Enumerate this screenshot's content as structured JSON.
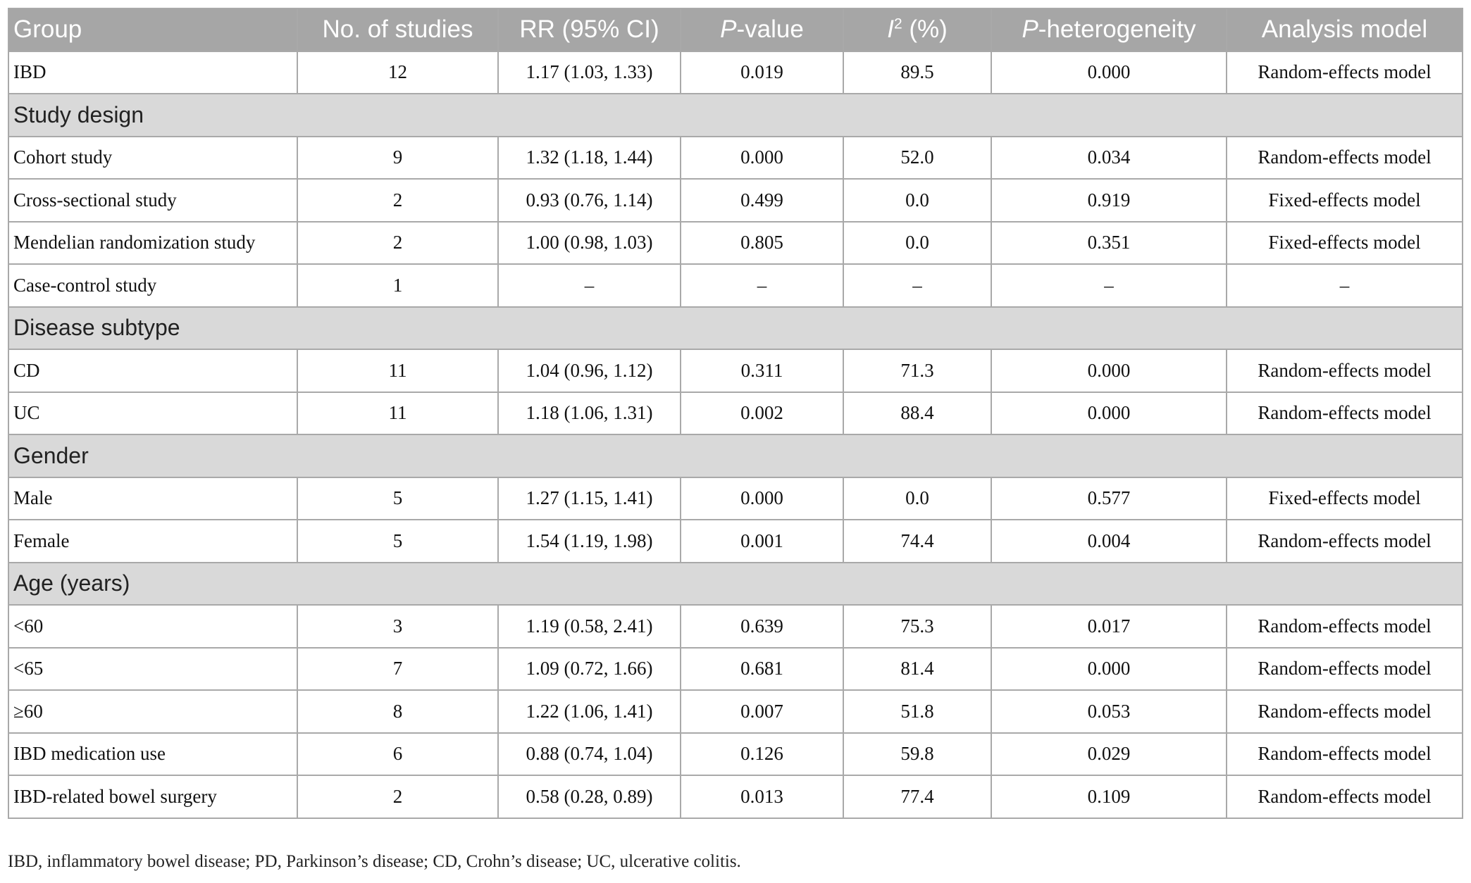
{
  "table": {
    "header": [
      {
        "text": "Group"
      },
      {
        "text": "No. of studies"
      },
      {
        "text": "RR (95% CI)"
      },
      {
        "italic": "P",
        "text": "-value"
      },
      {
        "italic": "I",
        "sup": "2",
        "text": " (%)"
      },
      {
        "italic": "P",
        "text": "-heterogeneity"
      },
      {
        "text": "Analysis model"
      }
    ],
    "rows": [
      {
        "cells": [
          "IBD",
          "12",
          "1.17 (1.03, 1.33)",
          "0.019",
          "89.5",
          "0.000",
          "Random-effects model"
        ]
      },
      {
        "section": "Study design"
      },
      {
        "cells": [
          "Cohort study",
          "9",
          "1.32 (1.18, 1.44)",
          "0.000",
          "52.0",
          "0.034",
          "Random-effects model"
        ]
      },
      {
        "cells": [
          "Cross-sectional study",
          "2",
          "0.93 (0.76, 1.14)",
          "0.499",
          "0.0",
          "0.919",
          "Fixed-effects model"
        ]
      },
      {
        "cells": [
          "Mendelian randomization study",
          "2",
          "1.00 (0.98, 1.03)",
          "0.805",
          "0.0",
          "0.351",
          "Fixed-effects model"
        ]
      },
      {
        "cells": [
          "Case-control study",
          "1",
          "–",
          "–",
          "–",
          "–",
          "–"
        ]
      },
      {
        "section": "Disease subtype"
      },
      {
        "cells": [
          "CD",
          "11",
          "1.04 (0.96, 1.12)",
          "0.311",
          "71.3",
          "0.000",
          "Random-effects model"
        ]
      },
      {
        "cells": [
          "UC",
          "11",
          "1.18 (1.06, 1.31)",
          "0.002",
          "88.4",
          "0.000",
          "Random-effects model"
        ]
      },
      {
        "section": "Gender"
      },
      {
        "cells": [
          "Male",
          "5",
          "1.27 (1.15, 1.41)",
          "0.000",
          "0.0",
          "0.577",
          "Fixed-effects model"
        ]
      },
      {
        "cells": [
          "Female",
          "5",
          "1.54 (1.19, 1.98)",
          "0.001",
          "74.4",
          "0.004",
          "Random-effects model"
        ]
      },
      {
        "section": "Age (years)"
      },
      {
        "cells": [
          "<60",
          "3",
          "1.19 (0.58, 2.41)",
          "0.639",
          "75.3",
          "0.017",
          "Random-effects model"
        ]
      },
      {
        "cells": [
          "<65",
          "7",
          "1.09 (0.72, 1.66)",
          "0.681",
          "81.4",
          "0.000",
          "Random-effects model"
        ]
      },
      {
        "cells": [
          "≥60",
          "8",
          "1.22 (1.06, 1.41)",
          "0.007",
          "51.8",
          "0.053",
          "Random-effects model"
        ]
      },
      {
        "cells": [
          "IBD medication use",
          "6",
          "0.88 (0.74, 1.04)",
          "0.126",
          "59.8",
          "0.029",
          "Random-effects model"
        ]
      },
      {
        "cells": [
          "IBD-related bowel surgery",
          "2",
          "0.58 (0.28, 0.89)",
          "0.013",
          "77.4",
          "0.109",
          "Random-effects model"
        ]
      }
    ]
  },
  "footnote": "IBD, inflammatory bowel disease; PD, Parkinson’s disease; CD, Crohn’s disease; UC, ulcerative colitis."
}
